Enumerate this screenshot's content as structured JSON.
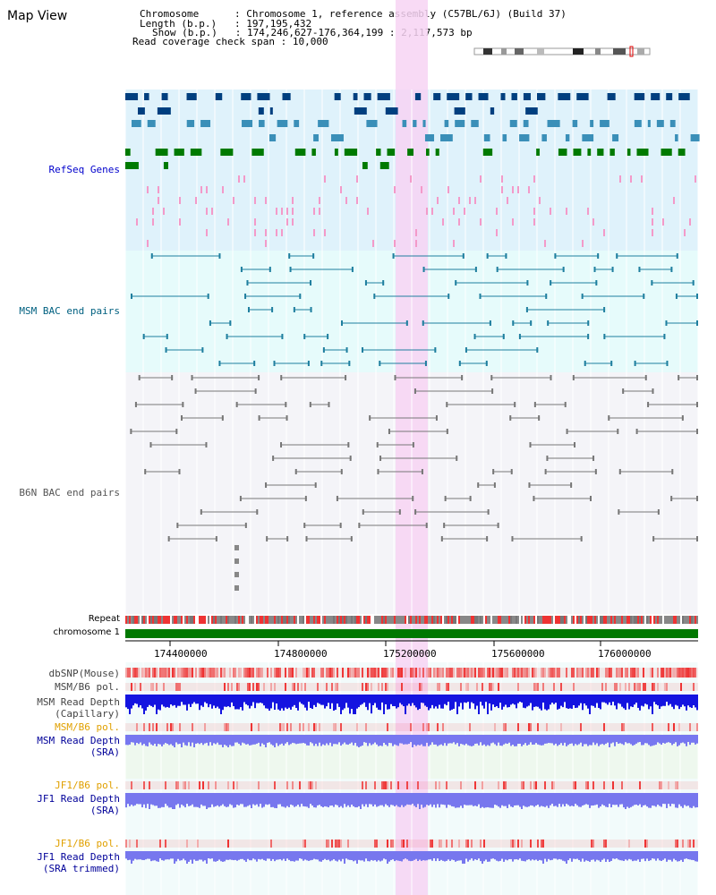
{
  "page": {
    "title": "Map View"
  },
  "info": {
    "chromosome_key": "Chromosome",
    "chromosome_val": "Chromosome 1, reference assembly (C57BL/6J) (Build 37)",
    "length_key": "Length (b.p.)",
    "length_val": "197,195,432",
    "show_key": "Show (b.p.)",
    "show_val": "174,246,627-176,364,199 : 2,117,573 bp",
    "coverage_key": "Read coverage check span",
    "coverage_val": "10,000"
  },
  "tracks": {
    "refseq": "RefSeq Genes",
    "msm_bac": "MSM BAC end pairs",
    "b6n_bac": "B6N BAC end pairs",
    "repeat": "Repeat",
    "chromosome": "chromosome 1",
    "dbsnp": "dbSNP(Mouse)",
    "msm_pol1": "MSM/B6 pol.",
    "msm_depth_cap_1": "MSM Read Depth",
    "msm_depth_cap_2": "(Capillary)",
    "msm_pol2": "MSM/B6 pol.",
    "msm_depth_sra_1": "MSM Read Depth",
    "msm_depth_sra_2": "(SRA)",
    "jf1_pol1": "JF1/B6 pol.",
    "jf1_depth_sra_1": "JF1 Read Depth",
    "jf1_depth_sra_2": "(SRA)",
    "jf1_pol2": "JF1/B6 pol.",
    "jf1_depth_trim_1": "JF1 Read Depth",
    "jf1_depth_trim_2": "(SRA trimmed)"
  },
  "axis": {
    "ticks": [
      "174400000",
      "174800000",
      "175200000",
      "175600000",
      "176000000"
    ]
  },
  "colors": {
    "refseq_bg": "#dff2fb",
    "msm_bg": "#e6fbfb",
    "b6n_bg": "#f4f4f8",
    "highlight": "#f7d4f3",
    "chromosome_bar": "#007800",
    "msm_label": "#006080",
    "navy_label": "#000099",
    "gold_label": "#e0a000",
    "depth_blue": "#2020e0"
  }
}
